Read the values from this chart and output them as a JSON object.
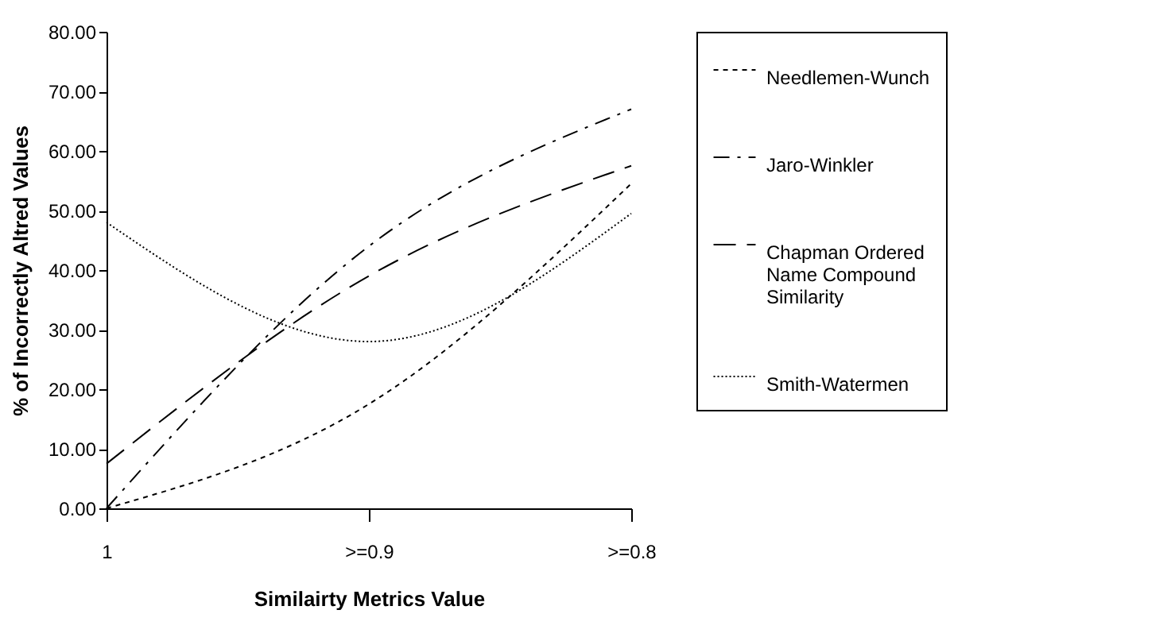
{
  "chart_data": {
    "type": "line",
    "xlabel": "Similairty Metrics Value",
    "ylabel": "% of Incorrectly Altred Values",
    "categories": [
      "1",
      ">=0.9",
      ">=0.8"
    ],
    "series": [
      {
        "name": "Needlemen-Wunch",
        "color": "#000000",
        "line_style": "dashed",
        "values": [
          0,
          17.5,
          54.5
        ]
      },
      {
        "name": "Jaro-Winkler",
        "color": "#000000",
        "line_style": "dashdot",
        "values": [
          0,
          44,
          67
        ]
      },
      {
        "name": "Chapman Ordered Name Compound Similarity",
        "color": "#000000",
        "line_style": "longdash",
        "values": [
          7.5,
          39,
          57.5
        ]
      },
      {
        "name": "Smith-Watermen",
        "color": "#000000",
        "line_style": "dotted",
        "values": [
          48,
          28,
          49.5
        ]
      }
    ],
    "ylim": [
      0,
      80
    ],
    "yticks": [
      {
        "value": 0,
        "label": "0.00"
      },
      {
        "value": 10,
        "label": "10.00"
      },
      {
        "value": 20,
        "label": "20.00"
      },
      {
        "value": 30,
        "label": "30.00"
      },
      {
        "value": 40,
        "label": "40.00"
      },
      {
        "value": 50,
        "label": "50.00"
      },
      {
        "value": 60,
        "label": "60.00"
      },
      {
        "value": 70,
        "label": "70.00"
      },
      {
        "value": 80,
        "label": "80.00"
      }
    ],
    "grid": false,
    "legend": "right",
    "marker": "none"
  }
}
